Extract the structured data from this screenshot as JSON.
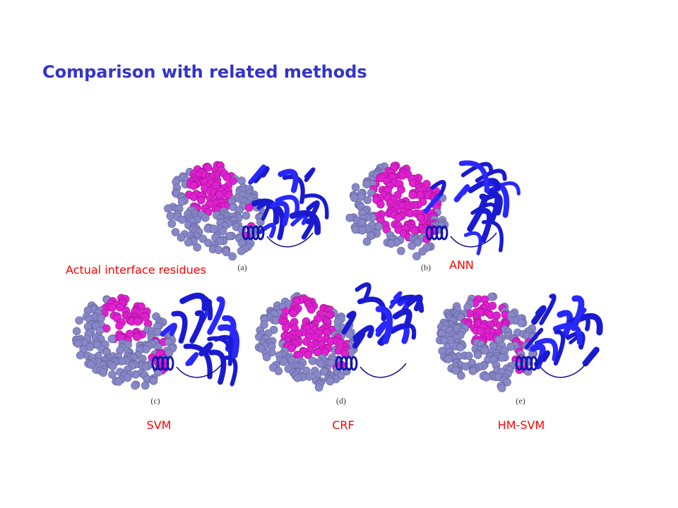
{
  "header": {
    "title": "Comparison with related methods"
  },
  "panels": [
    {
      "label": "(a)",
      "method": "Actual interface residues"
    },
    {
      "label": "(b)",
      "method": "ANN"
    },
    {
      "label": "(c)",
      "method": "SVM"
    },
    {
      "label": "(d)",
      "method": "CRF"
    },
    {
      "label": "(e)",
      "method": "HM-SVM"
    }
  ]
}
